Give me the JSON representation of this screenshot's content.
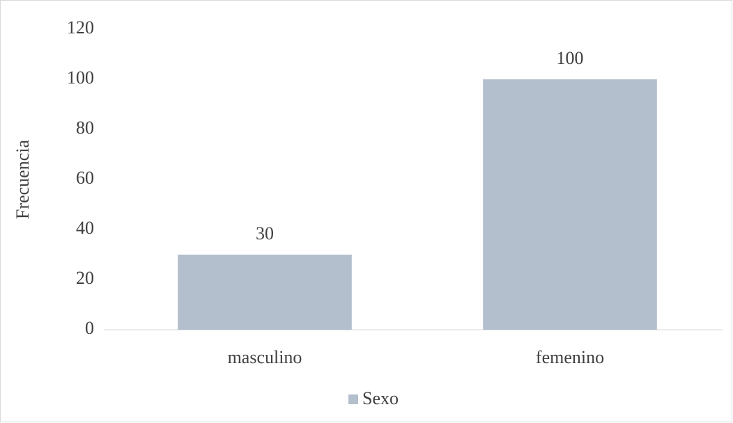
{
  "chart_data": {
    "type": "bar",
    "categories": [
      "masculino",
      "femenino"
    ],
    "series": [
      {
        "name": "Sexo",
        "color": "#b4bfcd",
        "values": [
          30,
          100
        ]
      }
    ],
    "ylabel": "Frecuencia",
    "ylim": [
      0,
      120
    ],
    "yticks": [
      0,
      20,
      40,
      60,
      80,
      100,
      120
    ],
    "grid": false,
    "legend": "bottom",
    "data_labels": true
  }
}
